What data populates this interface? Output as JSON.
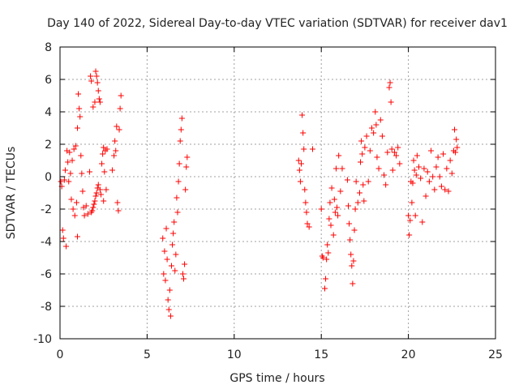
{
  "chart_data": {
    "type": "scatter",
    "title": "Day 140 of 2022, Sidereal Day-to-day VTEC variation (SDTVAR) for receiver dav1",
    "xlabel": "GPS time / hours",
    "ylabel": "SDTVAR / TECUs",
    "xlim": [
      0,
      25
    ],
    "ylim": [
      -10,
      8
    ],
    "x_ticks": [
      0,
      5,
      10,
      15,
      20,
      25
    ],
    "y_ticks": [
      -10,
      -8,
      -6,
      -4,
      -2,
      0,
      2,
      4,
      6,
      8
    ],
    "x_tick_labels": [
      "0",
      "5",
      "10",
      "15",
      "20",
      "25"
    ],
    "y_tick_labels": [
      "-10",
      "-8",
      "-6",
      "-4",
      "-2",
      "0",
      "2",
      "4",
      "6",
      "8"
    ],
    "grid": true,
    "marker": "+",
    "series": [
      {
        "name": "SDTVAR",
        "color": "#ff0000",
        "points": [
          [
            0.05,
            -0.3
          ],
          [
            0.1,
            -0.6
          ],
          [
            0.15,
            -3.3
          ],
          [
            0.2,
            -3.8
          ],
          [
            0.25,
            -0.2
          ],
          [
            0.3,
            0.4
          ],
          [
            0.35,
            -4.3
          ],
          [
            0.4,
            1.6
          ],
          [
            0.45,
            0.9
          ],
          [
            0.5,
            -0.3
          ],
          [
            0.55,
            1.5
          ],
          [
            0.6,
            0.2
          ],
          [
            0.65,
            -1.4
          ],
          [
            0.7,
            1.0
          ],
          [
            0.75,
            -2.0
          ],
          [
            0.8,
            1.7
          ],
          [
            0.85,
            -2.4
          ],
          [
            0.9,
            1.9
          ],
          [
            0.95,
            -1.6
          ],
          [
            1.0,
            -3.7
          ],
          [
            1.0,
            3.0
          ],
          [
            1.05,
            5.1
          ],
          [
            1.1,
            4.2
          ],
          [
            1.15,
            3.7
          ],
          [
            1.2,
            1.3
          ],
          [
            1.25,
            0.2
          ],
          [
            1.3,
            -0.9
          ],
          [
            1.35,
            -1.9
          ],
          [
            1.4,
            -2.4
          ],
          [
            1.5,
            -1.8
          ],
          [
            1.6,
            -2.3
          ],
          [
            1.7,
            0.3
          ],
          [
            1.8,
            -2.2
          ],
          [
            1.85,
            -2.1
          ],
          [
            1.9,
            -1.9
          ],
          [
            1.95,
            -1.7
          ],
          [
            2.0,
            -1.5
          ],
          [
            2.05,
            -1.2
          ],
          [
            2.1,
            -1.0
          ],
          [
            2.15,
            -0.7
          ],
          [
            2.2,
            -0.5
          ],
          [
            2.3,
            -0.8
          ],
          [
            2.35,
            -1.1
          ],
          [
            1.75,
            6.2
          ],
          [
            1.8,
            5.9
          ],
          [
            1.9,
            4.3
          ],
          [
            2.0,
            4.6
          ],
          [
            2.05,
            6.5
          ],
          [
            2.1,
            6.2
          ],
          [
            2.15,
            5.8
          ],
          [
            2.2,
            5.3
          ],
          [
            2.25,
            4.8
          ],
          [
            2.3,
            4.6
          ],
          [
            2.4,
            0.8
          ],
          [
            2.45,
            1.4
          ],
          [
            2.5,
            1.8
          ],
          [
            2.5,
            -1.5
          ],
          [
            2.55,
            0.3
          ],
          [
            2.6,
            1.6
          ],
          [
            2.65,
            -0.8
          ],
          [
            2.7,
            1.7
          ],
          [
            3.0,
            0.4
          ],
          [
            3.1,
            1.3
          ],
          [
            3.15,
            2.2
          ],
          [
            3.2,
            1.6
          ],
          [
            3.25,
            3.1
          ],
          [
            3.3,
            -1.6
          ],
          [
            3.35,
            -2.1
          ],
          [
            3.4,
            2.9
          ],
          [
            3.45,
            4.2
          ],
          [
            3.5,
            5.0
          ],
          [
            5.9,
            -3.8
          ],
          [
            5.95,
            -6.0
          ],
          [
            6.0,
            -4.6
          ],
          [
            6.05,
            -6.4
          ],
          [
            6.1,
            -3.2
          ],
          [
            6.15,
            -5.1
          ],
          [
            6.2,
            -7.6
          ],
          [
            6.25,
            -8.2
          ],
          [
            6.3,
            -7.0
          ],
          [
            6.35,
            -8.6
          ],
          [
            6.4,
            -5.5
          ],
          [
            6.45,
            -4.2
          ],
          [
            6.5,
            -3.5
          ],
          [
            6.55,
            -2.8
          ],
          [
            6.6,
            -5.8
          ],
          [
            6.65,
            -4.8
          ],
          [
            6.7,
            -1.3
          ],
          [
            6.75,
            -2.2
          ],
          [
            6.8,
            -0.3
          ],
          [
            6.85,
            0.8
          ],
          [
            6.9,
            2.2
          ],
          [
            6.95,
            2.9
          ],
          [
            7.0,
            3.6
          ],
          [
            7.05,
            -6.0
          ],
          [
            7.1,
            -6.3
          ],
          [
            7.15,
            -5.4
          ],
          [
            7.2,
            -0.8
          ],
          [
            7.25,
            0.6
          ],
          [
            7.3,
            1.2
          ],
          [
            13.7,
            1.0
          ],
          [
            13.75,
            0.4
          ],
          [
            13.8,
            -0.3
          ],
          [
            13.85,
            0.8
          ],
          [
            13.9,
            3.8
          ],
          [
            13.95,
            2.7
          ],
          [
            14.0,
            1.7
          ],
          [
            14.05,
            -0.8
          ],
          [
            14.1,
            -1.6
          ],
          [
            14.15,
            -2.2
          ],
          [
            14.2,
            -2.9
          ],
          [
            14.3,
            -3.1
          ],
          [
            14.5,
            1.7
          ],
          [
            15.0,
            -2.0
          ],
          [
            15.05,
            -4.9
          ],
          [
            15.1,
            -5.0
          ],
          [
            15.2,
            -6.9
          ],
          [
            15.25,
            -6.3
          ],
          [
            15.3,
            -5.1
          ],
          [
            15.35,
            -4.2
          ],
          [
            15.4,
            -4.7
          ],
          [
            15.45,
            -2.6
          ],
          [
            15.5,
            -1.6
          ],
          [
            15.55,
            -3.0
          ],
          [
            15.6,
            -0.7
          ],
          [
            15.7,
            -3.6
          ],
          [
            15.75,
            -1.4
          ],
          [
            15.8,
            -2.2
          ],
          [
            15.85,
            0.5
          ],
          [
            15.9,
            -1.9
          ],
          [
            15.95,
            -2.4
          ],
          [
            16.0,
            1.3
          ],
          [
            16.1,
            -0.9
          ],
          [
            16.2,
            0.5
          ],
          [
            16.5,
            -0.2
          ],
          [
            16.55,
            -1.8
          ],
          [
            16.6,
            -2.9
          ],
          [
            16.65,
            -3.9
          ],
          [
            16.7,
            -4.8
          ],
          [
            16.75,
            -5.5
          ],
          [
            16.8,
            -6.6
          ],
          [
            16.85,
            -5.2
          ],
          [
            16.9,
            -3.3
          ],
          [
            16.95,
            -2.0
          ],
          [
            17.0,
            -0.3
          ],
          [
            17.1,
            -1.6
          ],
          [
            17.2,
            -1.0
          ],
          [
            17.25,
            0.9
          ],
          [
            17.3,
            2.2
          ],
          [
            17.35,
            1.4
          ],
          [
            17.4,
            -0.5
          ],
          [
            17.45,
            -1.5
          ],
          [
            17.5,
            1.8
          ],
          [
            17.6,
            2.5
          ],
          [
            17.7,
            -0.3
          ],
          [
            17.8,
            1.6
          ],
          [
            17.9,
            3.0
          ],
          [
            18.0,
            2.7
          ],
          [
            18.1,
            4.0
          ],
          [
            18.15,
            3.2
          ],
          [
            18.2,
            1.2
          ],
          [
            18.3,
            0.5
          ],
          [
            18.4,
            3.5
          ],
          [
            18.5,
            2.5
          ],
          [
            18.6,
            0.1
          ],
          [
            18.7,
            -0.5
          ],
          [
            18.8,
            1.5
          ],
          [
            18.9,
            5.5
          ],
          [
            18.95,
            5.8
          ],
          [
            19.0,
            4.6
          ],
          [
            19.05,
            1.7
          ],
          [
            19.1,
            0.4
          ],
          [
            19.2,
            1.5
          ],
          [
            19.3,
            1.3
          ],
          [
            19.4,
            1.8
          ],
          [
            19.5,
            0.8
          ],
          [
            20.0,
            -2.4
          ],
          [
            20.05,
            -3.6
          ],
          [
            20.1,
            -2.7
          ],
          [
            20.15,
            -0.3
          ],
          [
            20.2,
            -1.6
          ],
          [
            20.25,
            -0.4
          ],
          [
            20.3,
            1.0
          ],
          [
            20.35,
            0.4
          ],
          [
            20.4,
            -2.4
          ],
          [
            20.45,
            0.1
          ],
          [
            20.5,
            1.3
          ],
          [
            20.6,
            0.6
          ],
          [
            20.7,
            -0.1
          ],
          [
            20.8,
            -2.8
          ],
          [
            20.9,
            0.5
          ],
          [
            21.0,
            -1.2
          ],
          [
            21.1,
            0.3
          ],
          [
            21.2,
            -0.3
          ],
          [
            21.3,
            1.6
          ],
          [
            21.4,
            0.0
          ],
          [
            21.5,
            -0.8
          ],
          [
            21.6,
            0.6
          ],
          [
            21.7,
            1.2
          ],
          [
            21.8,
            0.0
          ],
          [
            21.9,
            -0.6
          ],
          [
            22.0,
            1.4
          ],
          [
            22.1,
            -0.8
          ],
          [
            22.2,
            0.5
          ],
          [
            22.3,
            -0.9
          ],
          [
            22.4,
            1.0
          ],
          [
            22.5,
            0.2
          ],
          [
            22.6,
            1.6
          ],
          [
            22.65,
            2.9
          ],
          [
            22.7,
            1.5
          ],
          [
            22.75,
            2.3
          ],
          [
            22.8,
            1.8
          ]
        ]
      }
    ]
  }
}
